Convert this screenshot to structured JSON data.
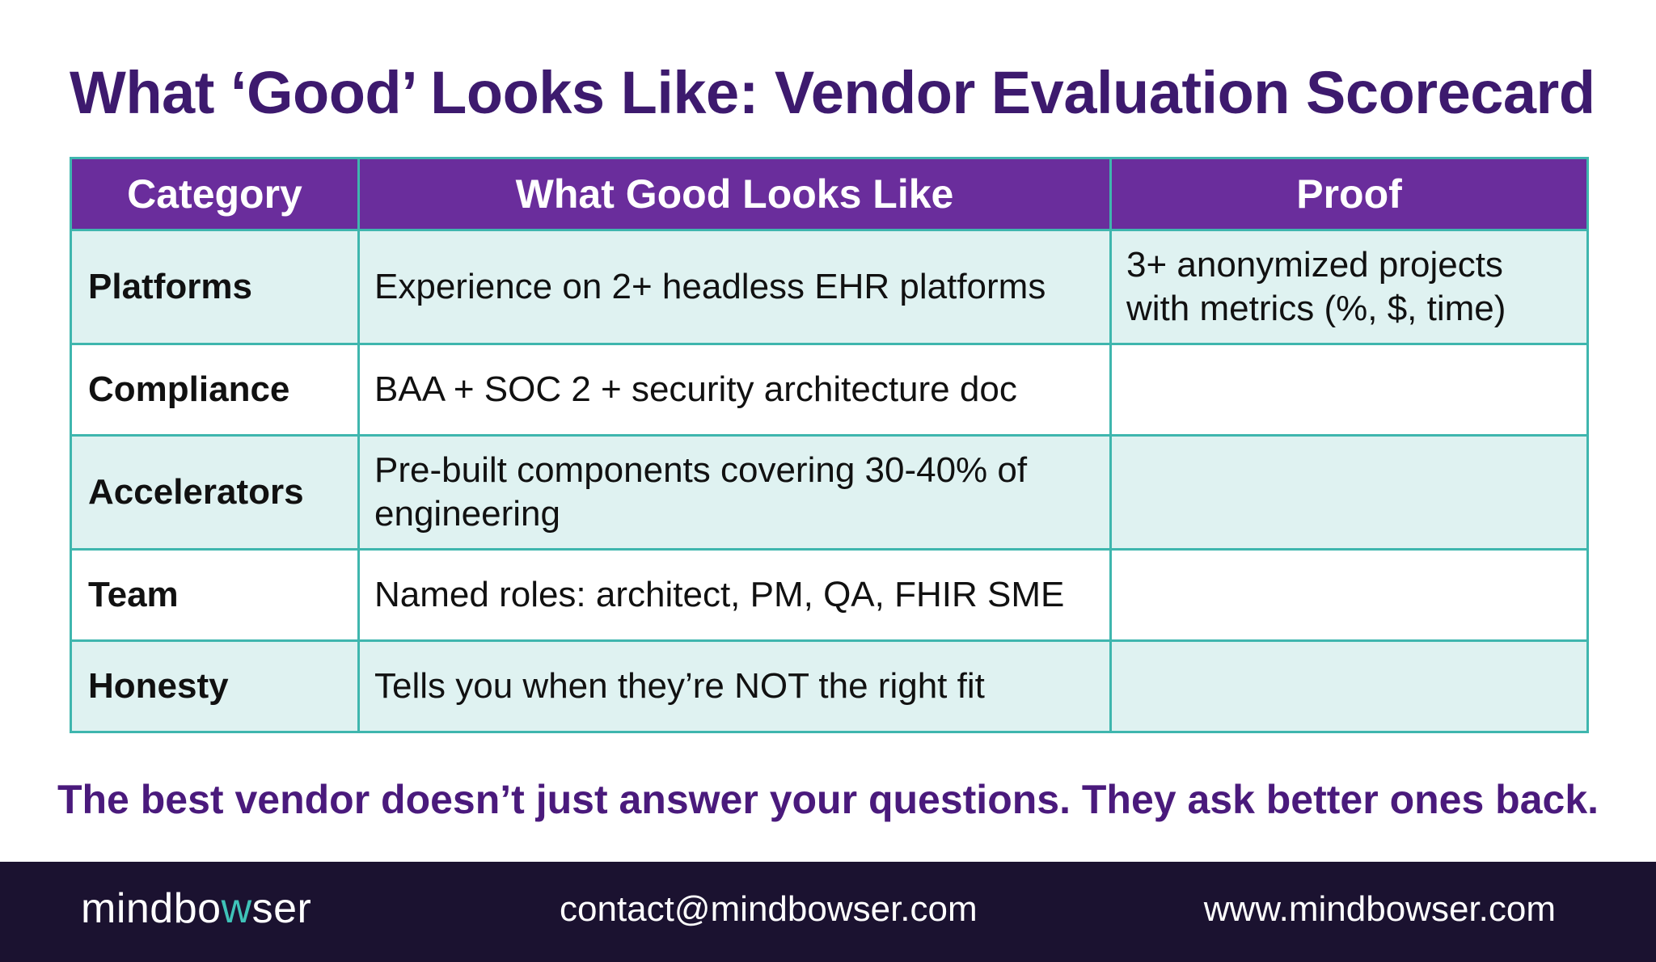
{
  "title": "What ‘Good’ Looks Like: Vendor Evaluation Scorecard",
  "table": {
    "headers": [
      "Category",
      "What Good Looks Like",
      "Proof"
    ],
    "rows": [
      {
        "category": "Platforms",
        "good": "Experience on 2+ headless EHR platforms",
        "proof": "3+ anonymized projects with metrics (%, $, time)"
      },
      {
        "category": "Compliance",
        "good": "BAA + SOC 2 + security architecture doc",
        "proof": ""
      },
      {
        "category": "Accelerators",
        "good": "Pre-built components covering 30-40% of engineering",
        "proof": ""
      },
      {
        "category": "Team",
        "good": "Named roles: architect, PM, QA, FHIR SME",
        "proof": ""
      },
      {
        "category": "Honesty",
        "good": "Tells you when they’re NOT the right fit",
        "proof": ""
      }
    ]
  },
  "tagline": "The best vendor doesn’t just answer your questions. They ask better ones back.",
  "footer": {
    "logo_part1": "mindbo",
    "logo_accent": "w",
    "logo_part2": "ser",
    "email": "contact@mindbowser.com",
    "website": "www.mindbowser.com"
  },
  "colors": {
    "title": "#3d1a6e",
    "header_bg": "#6a2d9c",
    "border": "#3fb6ae",
    "row_tint": "#dff2f1",
    "tagline": "#4a1a7c",
    "footer_bg": "#1b1230",
    "logo_accent": "#3fc3b8"
  }
}
